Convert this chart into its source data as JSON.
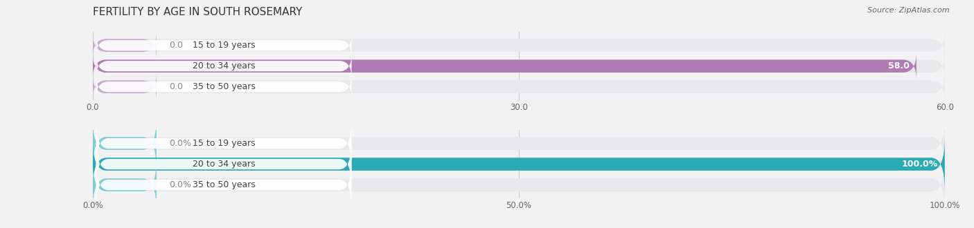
{
  "title": "FERTILITY BY AGE IN SOUTH ROSEMARY",
  "source": "Source: ZipAtlas.com",
  "top_chart": {
    "categories": [
      "15 to 19 years",
      "20 to 34 years",
      "35 to 50 years"
    ],
    "values": [
      0.0,
      58.0,
      0.0
    ],
    "max_value": 60.0,
    "tick_values": [
      0.0,
      30.0,
      60.0
    ],
    "tick_labels": [
      "0.0",
      "30.0",
      "60.0"
    ],
    "bar_color_full": "#b07ab5",
    "bar_color_empty": "#c9a8d4",
    "bar_bg": "#e8e8ec",
    "value_label_color": "#ffffff",
    "zero_label_color": "#888888"
  },
  "bottom_chart": {
    "categories": [
      "15 to 19 years",
      "20 to 34 years",
      "35 to 50 years"
    ],
    "values": [
      0.0,
      100.0,
      0.0
    ],
    "max_value": 100.0,
    "tick_values": [
      0.0,
      50.0,
      100.0
    ],
    "tick_labels": [
      "0.0%",
      "50.0%",
      "100.0%"
    ],
    "bar_color_full": "#2aaab5",
    "bar_color_empty": "#7fcdd4",
    "bar_bg": "#e8e8ec",
    "value_label_color": "#ffffff",
    "zero_label_color": "#888888"
  },
  "bg_color": "#f2f2f2",
  "title_fontsize": 11,
  "label_fontsize": 9,
  "tick_fontsize": 8.5,
  "source_fontsize": 8
}
